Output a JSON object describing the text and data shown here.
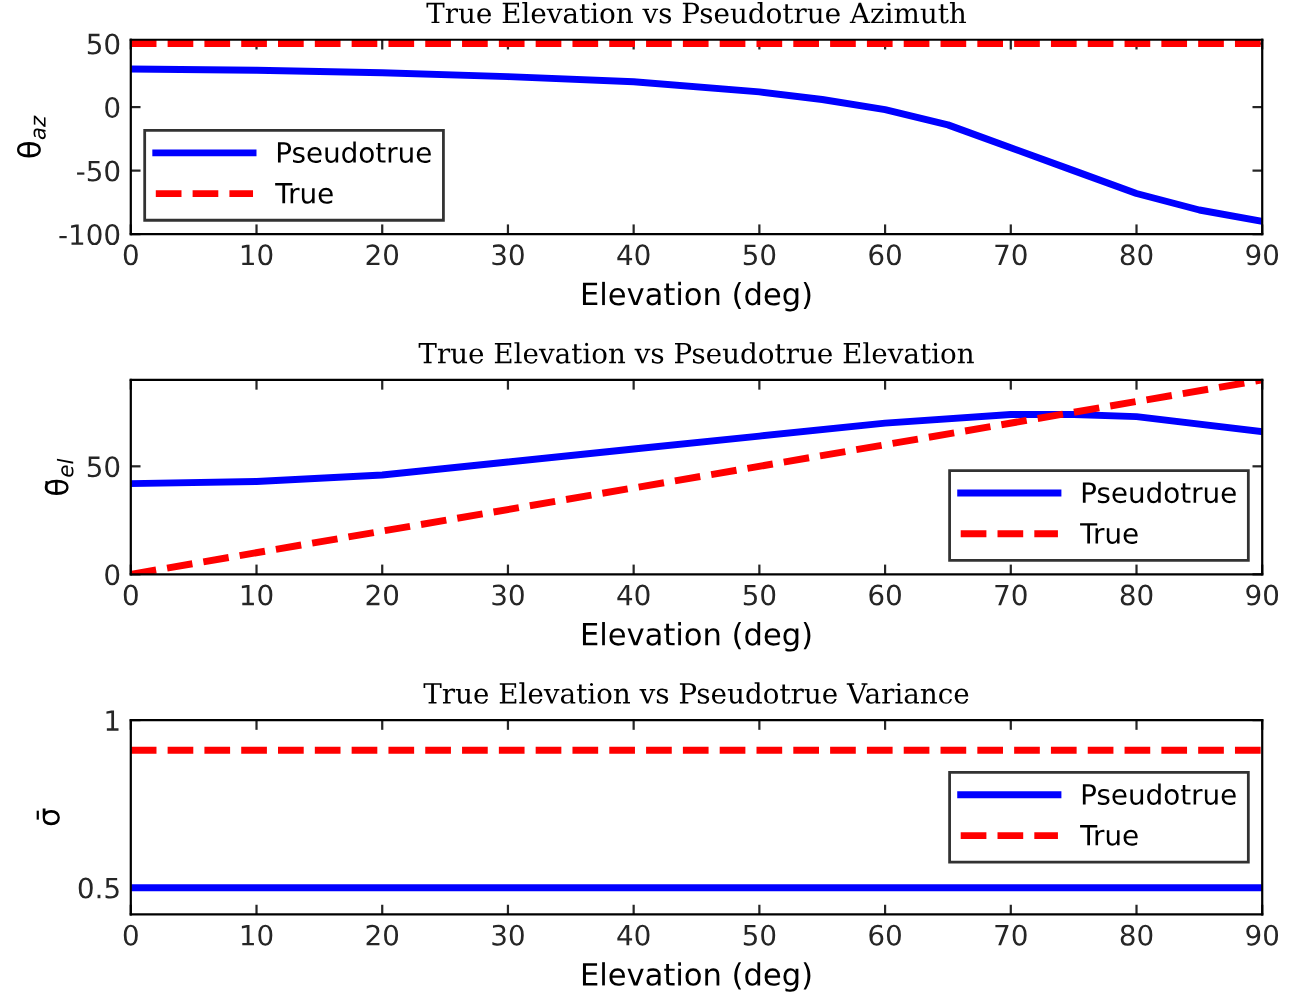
{
  "chart_data": [
    {
      "type": "line",
      "title": "True Elevation vs Pseudotrue Azimuth",
      "xlabel": "Elevation (deg)",
      "ylabel": "θ$_{az}$",
      "xlim": [
        0,
        90
      ],
      "xticks": [
        0,
        10,
        20,
        30,
        40,
        50,
        60,
        70,
        80,
        90
      ],
      "ylim": [
        -100,
        53
      ],
      "yticks": [
        -100,
        -50,
        0,
        50
      ],
      "grid": false,
      "legend": "bottom left",
      "series": [
        {
          "name": "Pseudotrue",
          "color": "#0000ff",
          "line_style": "solid",
          "x": [
            0,
            10,
            20,
            30,
            40,
            50,
            55,
            60,
            65,
            70,
            75,
            80,
            85,
            90
          ],
          "values": [
            30,
            29,
            27,
            24,
            20,
            12,
            6,
            -2,
            -14,
            -32,
            -50,
            -68,
            -81,
            -90
          ]
        },
        {
          "name": "True",
          "color": "#ff0000",
          "line_style": "dashed",
          "x": [
            0,
            90
          ],
          "values": [
            50,
            50
          ]
        }
      ]
    },
    {
      "type": "line",
      "title": "True Elevation vs Pseudotrue Elevation",
      "xlabel": "Elevation (deg)",
      "ylabel": "θ̄$_{el}$",
      "xlim": [
        0,
        90
      ],
      "xticks": [
        0,
        10,
        20,
        30,
        40,
        50,
        60,
        70,
        80,
        90
      ],
      "ylim": [
        0,
        90
      ],
      "yticks": [
        0,
        50
      ],
      "grid": false,
      "legend": "bottom right",
      "series": [
        {
          "name": "Pseudotrue",
          "color": "#0000ff",
          "line_style": "solid",
          "x": [
            0,
            10,
            20,
            30,
            40,
            50,
            60,
            70,
            75,
            80,
            90
          ],
          "values": [
            42,
            43,
            46,
            52,
            58,
            64,
            70,
            74,
            74,
            73,
            66
          ]
        },
        {
          "name": "True",
          "color": "#ff0000",
          "line_style": "dashed",
          "x": [
            0,
            90
          ],
          "values": [
            0,
            90
          ]
        }
      ]
    },
    {
      "type": "line",
      "title": "True Elevation vs Pseudotrue Variance",
      "xlabel": "Elevation (deg)",
      "ylabel": "σ̄",
      "xlim": [
        0,
        90
      ],
      "xticks": [
        0,
        10,
        20,
        30,
        40,
        50,
        60,
        70,
        80,
        90
      ],
      "ylim": [
        0.42,
        1
      ],
      "yticks": [
        0.5,
        1
      ],
      "grid": false,
      "legend": "right",
      "series": [
        {
          "name": "Pseudotrue",
          "color": "#0000ff",
          "line_style": "solid",
          "x": [
            0,
            90
          ],
          "values": [
            0.5,
            0.5
          ]
        },
        {
          "name": "True",
          "color": "#ff0000",
          "line_style": "dashed",
          "x": [
            0,
            90
          ],
          "values": [
            0.91,
            0.91
          ]
        }
      ]
    }
  ]
}
